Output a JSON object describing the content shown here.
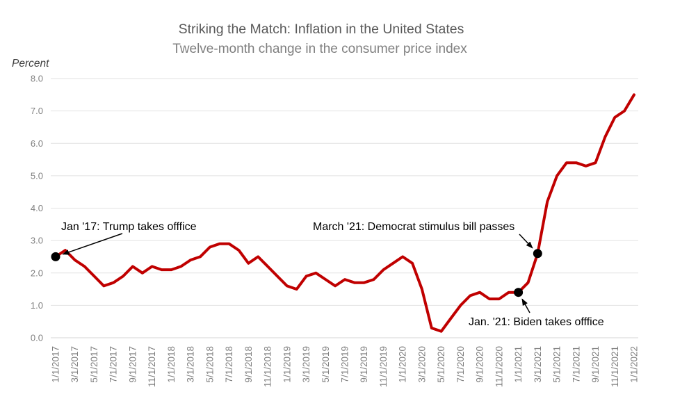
{
  "chart_data": {
    "type": "line",
    "title": "Striking the Match: Inflation in the United States",
    "subtitle": "Twelve-month change in the consumer price index",
    "y_axis_label": "Percent",
    "ylim": [
      0.0,
      8.0
    ],
    "y_tick_labels": [
      "0.0",
      "1.0",
      "2.0",
      "3.0",
      "4.0",
      "5.0",
      "6.0",
      "7.0",
      "8.0"
    ],
    "x_tick_labels": [
      "1/1/2017",
      "3/1/2017",
      "5/1/2017",
      "7/1/2017",
      "9/1/2017",
      "11/1/2017",
      "1/1/2018",
      "3/1/2018",
      "5/1/2018",
      "7/1/2018",
      "9/1/2018",
      "11/1/2018",
      "1/1/2019",
      "3/1/2019",
      "5/1/2019",
      "7/1/2019",
      "9/1/2019",
      "11/1/2019",
      "1/1/2020",
      "3/1/2020",
      "5/1/2020",
      "7/1/2020",
      "9/1/2020",
      "11/1/2020",
      "1/1/2021",
      "3/1/2021",
      "5/1/2021",
      "7/1/2021",
      "9/1/2021",
      "11/1/2021",
      "1/1/2022"
    ],
    "x_start": "1/1/2017",
    "x_end": "1/1/2022",
    "x_interval_months": 1,
    "grid": "horizontal",
    "legend": "none",
    "colors": {
      "line": "#C00000",
      "gridline": "#E2E2E2",
      "baseline": "#D6D6D6",
      "title": "#595959",
      "subtitle": "#7F7F7F",
      "tick_label": "#808080",
      "annotation": "#000000"
    },
    "series": [
      {
        "name": "Twelve-month CPI change (%)",
        "color": "#C00000",
        "values": [
          2.5,
          2.7,
          2.4,
          2.2,
          1.9,
          1.6,
          1.7,
          1.9,
          2.2,
          2.0,
          2.2,
          2.1,
          2.1,
          2.2,
          2.4,
          2.5,
          2.8,
          2.9,
          2.9,
          2.7,
          2.3,
          2.5,
          2.2,
          1.9,
          1.6,
          1.5,
          1.9,
          2.0,
          1.8,
          1.6,
          1.8,
          1.7,
          1.7,
          1.8,
          2.1,
          2.3,
          2.5,
          2.3,
          1.5,
          0.3,
          0.2,
          0.6,
          1.0,
          1.3,
          1.4,
          1.2,
          1.2,
          1.4,
          1.4,
          1.7,
          2.6,
          4.2,
          5.0,
          5.4,
          5.4,
          5.3,
          5.4,
          6.2,
          6.8,
          7.0,
          7.5
        ]
      }
    ],
    "annotations": [
      {
        "label": "Jan '17: Trump takes offfice",
        "target_date": "1/1/2017",
        "target_value": 2.5
      },
      {
        "label": "March '21: Democrat stimulus bill passes",
        "target_date": "3/1/2021",
        "target_value": 2.6
      },
      {
        "label": "Jan. '21: Biden takes offfice",
        "target_date": "1/1/2021",
        "target_value": 1.4
      }
    ]
  }
}
